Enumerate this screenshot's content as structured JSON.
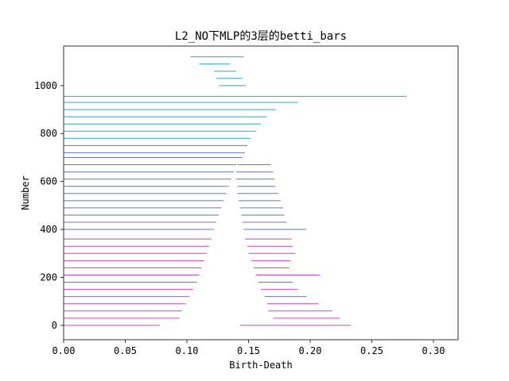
{
  "chart_data": {
    "type": "barcode",
    "title": "L2_NO下MLP的3层的betti_bars",
    "xlabel": "Birth-Death",
    "ylabel": "Number",
    "xlim": [
      0.0,
      0.32
    ],
    "ylim": [
      -60,
      1165
    ],
    "xticks": [
      "0.00",
      "0.05",
      "0.10",
      "0.15",
      "0.20",
      "0.25",
      "0.30"
    ],
    "yticks": [
      "0",
      "200",
      "400",
      "600",
      "800",
      "1000"
    ],
    "grid": false,
    "series": [
      {
        "color": "#cc44bb",
        "bars": [
          {
            "number": 0,
            "start": 0.0,
            "end": 0.078
          },
          {
            "number": 0,
            "start": 0.143,
            "end": 0.233
          },
          {
            "number": 30,
            "start": 0.0,
            "end": 0.094
          },
          {
            "number": 30,
            "start": 0.17,
            "end": 0.224
          },
          {
            "number": 60,
            "start": 0.0,
            "end": 0.096
          },
          {
            "number": 60,
            "start": 0.166,
            "end": 0.218
          },
          {
            "number": 90,
            "start": 0.0,
            "end": 0.099
          },
          {
            "number": 90,
            "start": 0.165,
            "end": 0.207
          },
          {
            "number": 120,
            "start": 0.0,
            "end": 0.102
          },
          {
            "number": 120,
            "start": 0.163,
            "end": 0.197
          },
          {
            "number": 150,
            "start": 0.0,
            "end": 0.105
          },
          {
            "number": 150,
            "start": 0.16,
            "end": 0.19
          },
          {
            "number": 180,
            "start": 0.0,
            "end": 0.108
          },
          {
            "number": 180,
            "start": 0.158,
            "end": 0.186
          },
          {
            "number": 210,
            "start": 0.0,
            "end": 0.11
          },
          {
            "number": 210,
            "start": 0.156,
            "end": 0.208
          },
          {
            "number": 240,
            "start": 0.0,
            "end": 0.112
          },
          {
            "number": 240,
            "start": 0.154,
            "end": 0.183
          },
          {
            "number": 270,
            "start": 0.0,
            "end": 0.114
          },
          {
            "number": 270,
            "start": 0.152,
            "end": 0.184
          },
          {
            "number": 300,
            "start": 0.0,
            "end": 0.116
          },
          {
            "number": 300,
            "start": 0.15,
            "end": 0.188
          },
          {
            "number": 330,
            "start": 0.0,
            "end": 0.118
          },
          {
            "number": 330,
            "start": 0.149,
            "end": 0.186
          },
          {
            "number": 360,
            "start": 0.0,
            "end": 0.12
          },
          {
            "number": 360,
            "start": 0.147,
            "end": 0.185
          }
        ]
      },
      {
        "color": "#6677bb",
        "bars": [
          {
            "number": 400,
            "start": 0.0,
            "end": 0.122
          },
          {
            "number": 400,
            "start": 0.146,
            "end": 0.197
          },
          {
            "number": 430,
            "start": 0.0,
            "end": 0.124
          },
          {
            "number": 430,
            "start": 0.145,
            "end": 0.181
          },
          {
            "number": 460,
            "start": 0.0,
            "end": 0.126
          },
          {
            "number": 460,
            "start": 0.144,
            "end": 0.179
          },
          {
            "number": 490,
            "start": 0.0,
            "end": 0.128
          },
          {
            "number": 490,
            "start": 0.143,
            "end": 0.178
          },
          {
            "number": 520,
            "start": 0.0,
            "end": 0.13
          },
          {
            "number": 520,
            "start": 0.142,
            "end": 0.176
          },
          {
            "number": 550,
            "start": 0.0,
            "end": 0.132
          },
          {
            "number": 550,
            "start": 0.141,
            "end": 0.174
          },
          {
            "number": 580,
            "start": 0.0,
            "end": 0.134
          },
          {
            "number": 580,
            "start": 0.141,
            "end": 0.172
          },
          {
            "number": 610,
            "start": 0.0,
            "end": 0.136
          },
          {
            "number": 610,
            "start": 0.14,
            "end": 0.171
          },
          {
            "number": 640,
            "start": 0.0,
            "end": 0.138
          },
          {
            "number": 640,
            "start": 0.14,
            "end": 0.17
          },
          {
            "number": 670,
            "start": 0.0,
            "end": 0.14
          },
          {
            "number": 670,
            "start": 0.141,
            "end": 0.168
          },
          {
            "number": 700,
            "start": 0.0,
            "end": 0.145
          },
          {
            "number": 720,
            "start": 0.0,
            "end": 0.147
          },
          {
            "number": 750,
            "start": 0.0,
            "end": 0.149
          }
        ]
      },
      {
        "color": "#22aacc",
        "bars": [
          {
            "number": 780,
            "start": 0.0,
            "end": 0.152
          },
          {
            "number": 810,
            "start": 0.0,
            "end": 0.156
          },
          {
            "number": 840,
            "start": 0.0,
            "end": 0.16
          },
          {
            "number": 870,
            "start": 0.0,
            "end": 0.165
          },
          {
            "number": 900,
            "start": 0.0,
            "end": 0.172
          },
          {
            "number": 930,
            "start": 0.0,
            "end": 0.19
          },
          {
            "number": 955,
            "start": 0.0,
            "end": 0.278
          },
          {
            "number": 1000,
            "start": 0.126,
            "end": 0.148
          },
          {
            "number": 1030,
            "start": 0.124,
            "end": 0.145
          },
          {
            "number": 1060,
            "start": 0.122,
            "end": 0.14
          },
          {
            "number": 1090,
            "start": 0.11,
            "end": 0.135
          },
          {
            "number": 1120,
            "start": 0.103,
            "end": 0.146
          }
        ]
      }
    ]
  }
}
